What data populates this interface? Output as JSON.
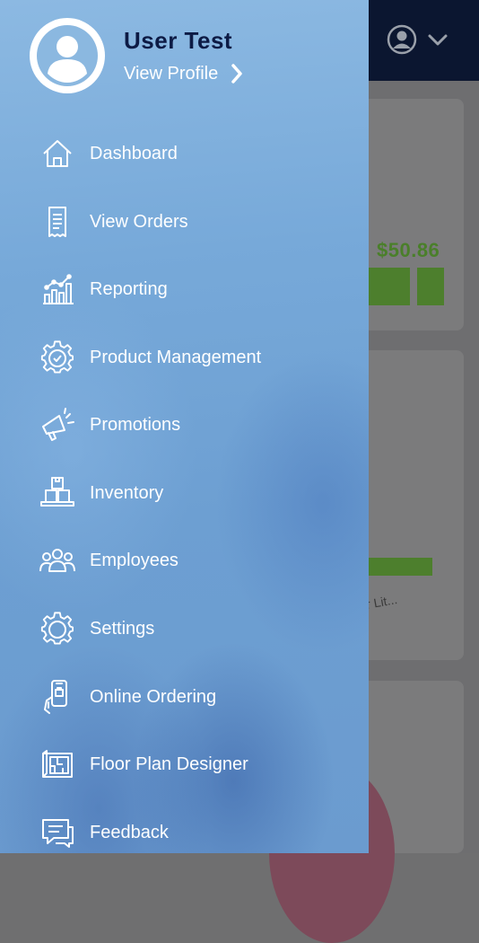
{
  "background": {
    "summary_amount": "$50.86",
    "truncated_text": "r Lit..."
  },
  "drawer": {
    "user_name": "User Test",
    "view_profile": "View Profile",
    "menu": [
      {
        "label": "Dashboard",
        "icon": "home-icon"
      },
      {
        "label": "View Orders",
        "icon": "receipt-icon"
      },
      {
        "label": "Reporting",
        "icon": "bar-chart-icon"
      },
      {
        "label": "Product Management",
        "icon": "gear-check-icon"
      },
      {
        "label": "Promotions",
        "icon": "megaphone-icon"
      },
      {
        "label": "Inventory",
        "icon": "boxes-icon"
      },
      {
        "label": "Employees",
        "icon": "people-icon"
      },
      {
        "label": "Settings",
        "icon": "gear-icon"
      },
      {
        "label": "Online Ordering",
        "icon": "phone-order-icon"
      },
      {
        "label": "Floor Plan Designer",
        "icon": "floor-plan-icon"
      },
      {
        "label": "Feedback",
        "icon": "chat-icon"
      }
    ]
  },
  "colors": {
    "accent_green": "#4d7f2d",
    "drawer_blue": "#77a9d9",
    "top_bar": "#0b1630",
    "user_name_color": "#0d1b45"
  }
}
